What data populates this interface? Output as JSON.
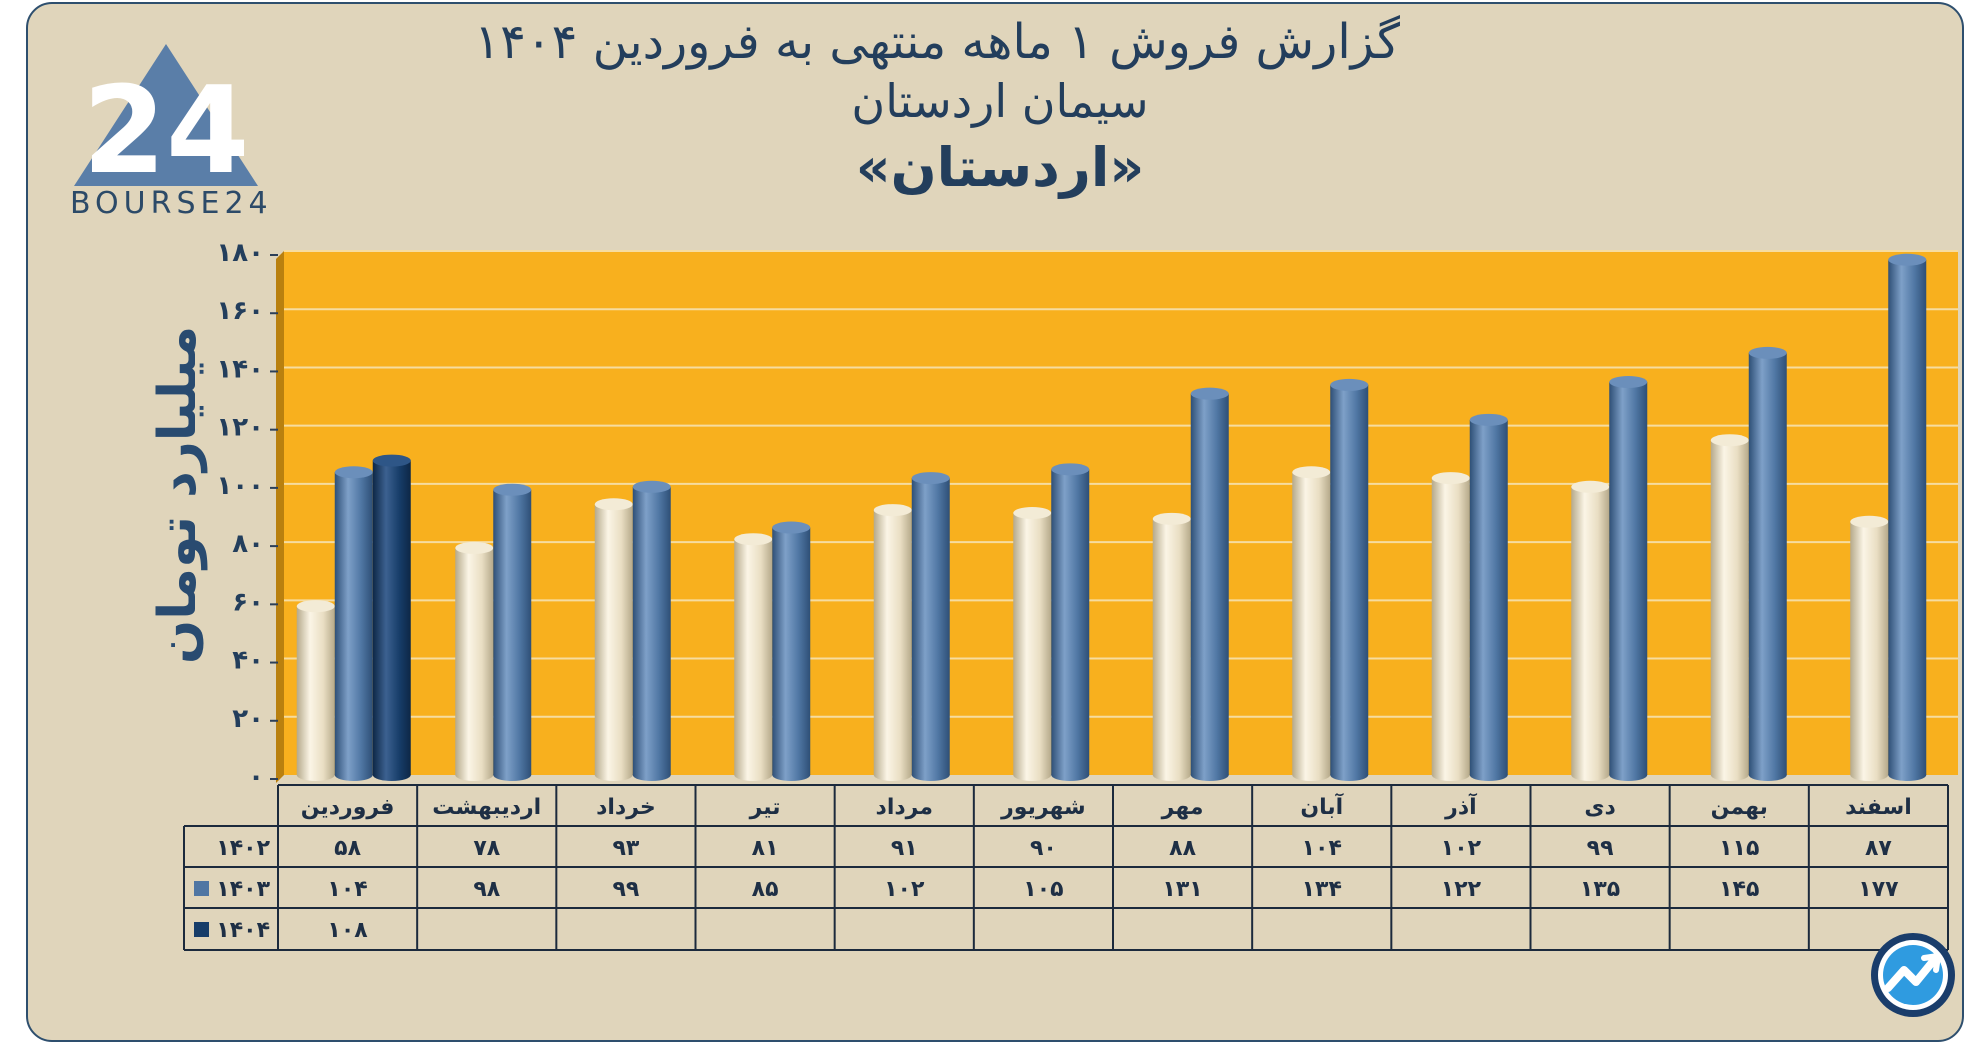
{
  "title": {
    "line1": "گزارش  فروش ۱ ماهه منتهی به فروردین ۱۴۰۴",
    "line2": "سیمان اردستان",
    "line3": "«اردستان»"
  },
  "logo": {
    "text": "BOURSE24",
    "mark": "24"
  },
  "colors": {
    "plot_bg": "#f8b01e",
    "series_1402": "#e9dec3",
    "series_1403": "#4f76a3",
    "series_1404": "#173d69",
    "frame_bg": "#e0d5bb"
  },
  "icons": {
    "app": "trend-arrow-icon"
  },
  "chart_data": {
    "type": "bar",
    "title": "گزارش  فروش ۱ ماهه منتهی به فروردین ۱۴۰۴",
    "ylabel": "میلیارد تومان",
    "xlabel": "",
    "ylim": [
      0,
      180
    ],
    "yticks": [
      0,
      20,
      40,
      60,
      80,
      100,
      120,
      140,
      160,
      180
    ],
    "ytick_labels": [
      "۰",
      "۲۰",
      "۴۰",
      "۶۰",
      "۸۰",
      "۱۰۰",
      "۱۲۰",
      "۱۴۰",
      "۱۶۰",
      "۱۸۰"
    ],
    "grid": true,
    "categories": [
      "فروردین",
      "اردیبهشت",
      "خرداد",
      "تیر",
      "مرداد",
      "شهریور",
      "مهر",
      "آبان",
      "آذر",
      "دی",
      "بهمن",
      "اسفند"
    ],
    "series": [
      {
        "name": "۱۴۰۲",
        "values": [
          58,
          78,
          93,
          81,
          91,
          90,
          88,
          104,
          102,
          99,
          115,
          87
        ],
        "labels": [
          "۵۸",
          "۷۸",
          "۹۳",
          "۸۱",
          "۹۱",
          "۹۰",
          "۸۸",
          "۱۰۴",
          "۱۰۲",
          "۹۹",
          "۱۱۵",
          "۸۷"
        ]
      },
      {
        "name": "۱۴۰۳",
        "values": [
          104,
          98,
          99,
          85,
          102,
          105,
          131,
          134,
          122,
          135,
          145,
          177
        ],
        "labels": [
          "۱۰۴",
          "۹۸",
          "۹۹",
          "۸۵",
          "۱۰۲",
          "۱۰۵",
          "۱۳۱",
          "۱۳۴",
          "۱۲۲",
          "۱۳۵",
          "۱۴۵",
          "۱۷۷"
        ]
      },
      {
        "name": "۱۴۰۴",
        "values": [
          108,
          null,
          null,
          null,
          null,
          null,
          null,
          null,
          null,
          null,
          null,
          null
        ],
        "labels": [
          "۱۰۸",
          "",
          "",
          "",
          "",
          "",
          "",
          "",
          "",
          "",
          "",
          ""
        ]
      }
    ]
  }
}
